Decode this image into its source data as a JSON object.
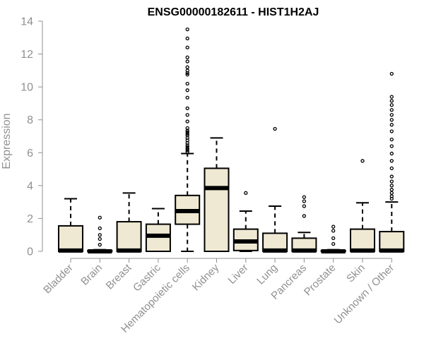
{
  "chart_data": {
    "type": "box",
    "title": "ENSG00000182611 - HIST1H2AJ",
    "xlabel": "",
    "ylabel": "Expression",
    "ylim": [
      0,
      14
    ],
    "yticks": [
      0,
      2,
      4,
      6,
      8,
      10,
      12,
      14
    ],
    "grid": false,
    "box_fill": "#efe9d3",
    "box_stroke": "#000000",
    "axis_color": "#909090",
    "categories": [
      "Bladder",
      "Brain",
      "Breast",
      "Gastric",
      "Hematopoietic cells",
      "Kidney",
      "Liver",
      "Lung",
      "Pancreas",
      "Prostate",
      "Skin",
      "Unknown / Other"
    ],
    "boxes": [
      {
        "category": "Bladder",
        "whisker_low": 0,
        "q1": 0,
        "median": 0.05,
        "q3": 1.55,
        "whisker_high": 3.2,
        "outliers": []
      },
      {
        "category": "Brain",
        "whisker_low": 0,
        "q1": 0,
        "median": 0,
        "q3": 0.05,
        "whisker_high": 0.1,
        "outliers": [
          0.4,
          0.75,
          1.0,
          1.4,
          2.05
        ]
      },
      {
        "category": "Breast",
        "whisker_low": 0,
        "q1": 0,
        "median": 0.05,
        "q3": 1.8,
        "whisker_high": 3.55,
        "outliers": []
      },
      {
        "category": "Gastric",
        "whisker_low": 0,
        "q1": 0,
        "median": 0.95,
        "q3": 1.65,
        "whisker_high": 2.6,
        "outliers": []
      },
      {
        "category": "Hematopoietic cells",
        "whisker_low": 0,
        "q1": 1.65,
        "median": 2.45,
        "q3": 3.4,
        "whisker_high": 5.95,
        "outliers": [
          6.05,
          6.15,
          6.25,
          6.35,
          6.45,
          6.6,
          6.75,
          6.9,
          7.05,
          7.15,
          7.25,
          7.35,
          7.5,
          7.9,
          8.3,
          8.7,
          9.35,
          9.8,
          10.2,
          10.75,
          10.85,
          11.0,
          11.2,
          11.55,
          11.8,
          12.4,
          12.95,
          13.5
        ]
      },
      {
        "category": "Kidney",
        "whisker_low": 0,
        "q1": 0,
        "median": 3.85,
        "q3": 5.05,
        "whisker_high": 6.9,
        "outliers": []
      },
      {
        "category": "Liver",
        "whisker_low": 0,
        "q1": 0.05,
        "median": 0.6,
        "q3": 1.35,
        "whisker_high": 2.45,
        "outliers": [
          3.55
        ]
      },
      {
        "category": "Lung",
        "whisker_low": 0,
        "q1": 0,
        "median": 0.05,
        "q3": 1.1,
        "whisker_high": 2.75,
        "outliers": [
          7.45
        ]
      },
      {
        "category": "Pancreas",
        "whisker_low": 0,
        "q1": 0,
        "median": 0.05,
        "q3": 0.8,
        "whisker_high": 1.15,
        "outliers": [
          2.15,
          2.75,
          3.05,
          3.3
        ]
      },
      {
        "category": "Prostate",
        "whisker_low": 0,
        "q1": 0,
        "median": 0,
        "q3": 0.05,
        "whisker_high": 0.1,
        "outliers": [
          0.45,
          0.8,
          1.25,
          1.5
        ]
      },
      {
        "category": "Skin",
        "whisker_low": 0,
        "q1": 0,
        "median": 0.05,
        "q3": 1.35,
        "whisker_high": 2.95,
        "outliers": [
          5.5
        ]
      },
      {
        "category": "Unknown / Other",
        "whisker_low": 0,
        "q1": 0,
        "median": 0.05,
        "q3": 1.2,
        "whisker_high": 3.0,
        "outliers": [
          3.2,
          3.35,
          3.55,
          3.75,
          4.0,
          4.25,
          4.55,
          5.05,
          5.5,
          5.95,
          6.4,
          6.8,
          7.3,
          7.7,
          8.0,
          8.3,
          8.6,
          8.9,
          9.15,
          9.4,
          10.8
        ]
      }
    ]
  }
}
